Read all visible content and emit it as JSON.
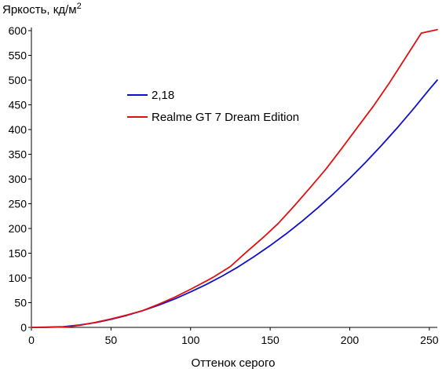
{
  "chart_data": {
    "type": "line",
    "title": "",
    "ylabel": "Яркость, кд/м",
    "ylabel_superscript": "2",
    "xlabel": "Оттенок серого",
    "xlim": [
      0,
      255
    ],
    "ylim": [
      0,
      600
    ],
    "x_ticks": [
      0,
      50,
      100,
      150,
      200,
      250
    ],
    "y_ticks": [
      0,
      50,
      100,
      150,
      200,
      250,
      300,
      350,
      400,
      450,
      500,
      550,
      600
    ],
    "grid": false,
    "legend_position": "top-left-inside",
    "series": [
      {
        "name": "2,18",
        "color": "#1010c8",
        "x": [
          0,
          10,
          20,
          30,
          40,
          50,
          60,
          70,
          80,
          90,
          100,
          110,
          120,
          130,
          140,
          150,
          160,
          170,
          180,
          190,
          200,
          210,
          220,
          230,
          240,
          250,
          255
        ],
        "y": [
          0,
          0.5,
          1.5,
          4.8,
          9.5,
          16.2,
          24.3,
          33.9,
          44.9,
          57.4,
          71.8,
          87.0,
          103.9,
          122.6,
          143.1,
          165.4,
          189.1,
          214.6,
          241.7,
          270.8,
          301.5,
          333.9,
          368.1,
          404.0,
          441.8,
          481.3,
          500
        ]
      },
      {
        "name": "Realme GT 7 Dream Edition",
        "color": "#e01010",
        "x": [
          0,
          10,
          20,
          25,
          30,
          40,
          50,
          60,
          70,
          80,
          90,
          100,
          110,
          115,
          125,
          135,
          145,
          155,
          165,
          175,
          185,
          195,
          205,
          215,
          225,
          235,
          245,
          255
        ],
        "y": [
          0,
          0,
          1,
          2,
          4,
          10,
          17,
          25,
          34,
          47,
          61,
          77,
          94,
          103,
          123,
          152,
          180,
          210,
          245,
          282,
          320,
          362,
          405,
          448,
          495,
          545,
          595,
          602
        ]
      }
    ]
  }
}
